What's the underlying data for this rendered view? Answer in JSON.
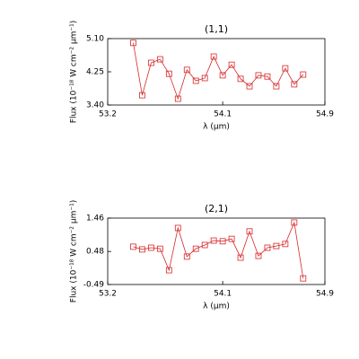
{
  "chart_data": [
    {
      "type": "line",
      "title": "(1,1)",
      "xlabel": "λ (μm)",
      "ylabel": "Flux (10⁻¹⁸ W cm⁻² μm⁻¹)",
      "x": [
        53.4,
        53.47,
        53.54,
        53.61,
        53.68,
        53.75,
        53.82,
        53.89,
        53.96,
        54.03,
        54.1,
        54.17,
        54.24,
        54.31,
        54.38,
        54.45,
        54.52,
        54.59,
        54.66,
        54.73
      ],
      "series": [
        {
          "name": "(1,1)",
          "color": "#d62728",
          "values": [
            4.99,
            3.65,
            4.48,
            4.57,
            4.2,
            3.56,
            4.3,
            4.02,
            4.09,
            4.64,
            4.16,
            4.43,
            4.07,
            3.88,
            4.16,
            4.13,
            3.88,
            4.34,
            3.93,
            4.18
          ]
        }
      ],
      "xlim": [
        53.2,
        54.9
      ],
      "xticks": [
        53.2,
        54.1,
        54.9
      ],
      "ylim": [
        3.4,
        5.1
      ],
      "yticks": [
        {
          "value": 3.4,
          "label": "3.40"
        },
        4.25,
        {
          "value": 5.1,
          "label": "5.10"
        }
      ]
    },
    {
      "type": "line",
      "title": "(2,1)",
      "xlabel": "λ (μm)",
      "ylabel": "Flux (10⁻¹⁸ W cm⁻² μm⁻¹)",
      "x": [
        53.4,
        53.47,
        53.54,
        53.61,
        53.68,
        53.75,
        53.82,
        53.89,
        53.96,
        54.03,
        54.1,
        54.17,
        54.24,
        54.31,
        54.38,
        54.45,
        54.52,
        54.59,
        54.66,
        54.73
      ],
      "series": [
        {
          "name": "(2,1)",
          "color": "#d62728",
          "values": [
            0.62,
            0.54,
            0.59,
            0.56,
            -0.07,
            1.17,
            0.33,
            0.56,
            0.67,
            0.8,
            0.78,
            0.85,
            0.3,
            1.07,
            0.35,
            0.59,
            0.64,
            0.7,
            1.33,
            -0.31
          ]
        }
      ],
      "xlim": [
        53.2,
        54.9
      ],
      "xticks": [
        53.2,
        54.1,
        54.9
      ],
      "ylim": [
        -0.49,
        1.46
      ],
      "yticks": [
        -0.49,
        0.48,
        1.46
      ]
    }
  ]
}
